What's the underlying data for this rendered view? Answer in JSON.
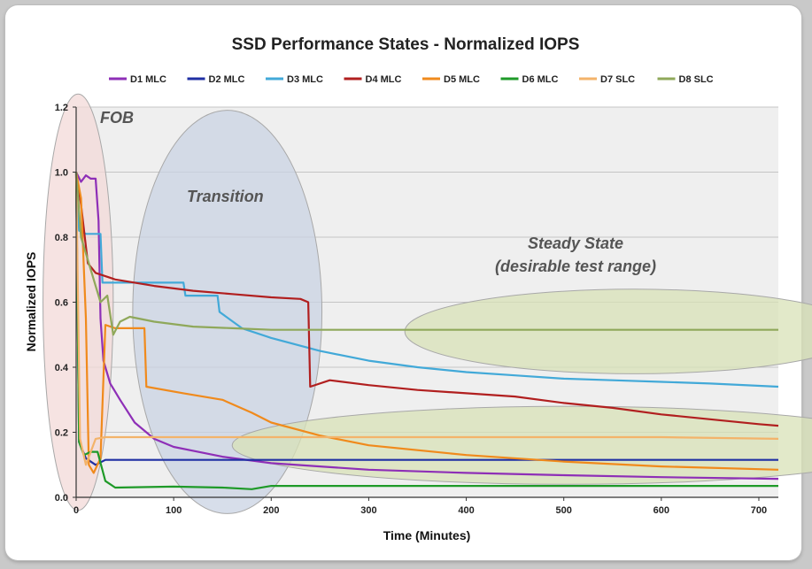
{
  "colors": {
    "frame_bg": "#ffffff",
    "plot_bg": "#efefef",
    "fob_fill": "#f3d9d8",
    "transition_fill": "#c9d3e3",
    "steady_fill": "#d8e2b7"
  },
  "chart_data": {
    "type": "line",
    "title": "SSD Performance States - Normalized IOPS",
    "xlabel": "Time (Minutes)",
    "ylabel": "Normalized IOPS",
    "xlim": [
      0,
      720
    ],
    "ylim": [
      0,
      1.2
    ],
    "xticks": [
      0,
      100,
      200,
      300,
      400,
      500,
      600,
      700
    ],
    "yticks": [
      0.0,
      0.2,
      0.4,
      0.6,
      0.8,
      1.0,
      1.2
    ],
    "grid": true,
    "legend_position": "top",
    "annotations": [
      {
        "text": "FOB",
        "region": "fob"
      },
      {
        "text": "Transition",
        "region": "transition"
      },
      {
        "text": "Steady State",
        "region": "steady"
      },
      {
        "text": "(desirable test range)",
        "region": "steady"
      }
    ],
    "series": [
      {
        "name": "D1 MLC",
        "color": "#8e2fb7",
        "points": [
          [
            0,
            1.0
          ],
          [
            5,
            0.97
          ],
          [
            10,
            0.99
          ],
          [
            15,
            0.98
          ],
          [
            20,
            0.98
          ],
          [
            23,
            0.85
          ],
          [
            25,
            0.55
          ],
          [
            28,
            0.42
          ],
          [
            35,
            0.35
          ],
          [
            45,
            0.3
          ],
          [
            60,
            0.23
          ],
          [
            80,
            0.18
          ],
          [
            100,
            0.155
          ],
          [
            150,
            0.125
          ],
          [
            200,
            0.105
          ],
          [
            250,
            0.095
          ],
          [
            300,
            0.085
          ],
          [
            400,
            0.075
          ],
          [
            500,
            0.068
          ],
          [
            600,
            0.062
          ],
          [
            720,
            0.057
          ]
        ]
      },
      {
        "name": "D2 MLC",
        "color": "#1f2fa3",
        "points": [
          [
            0,
            1.0
          ],
          [
            3,
            0.17
          ],
          [
            10,
            0.12
          ],
          [
            20,
            0.1
          ],
          [
            30,
            0.115
          ],
          [
            100,
            0.115
          ],
          [
            200,
            0.115
          ],
          [
            300,
            0.115
          ],
          [
            400,
            0.115
          ],
          [
            500,
            0.115
          ],
          [
            600,
            0.115
          ],
          [
            720,
            0.115
          ]
        ]
      },
      {
        "name": "D3 MLC",
        "color": "#42a9d8",
        "points": [
          [
            0,
            1.0
          ],
          [
            3,
            0.82
          ],
          [
            10,
            0.81
          ],
          [
            25,
            0.81
          ],
          [
            27,
            0.66
          ],
          [
            60,
            0.66
          ],
          [
            110,
            0.66
          ],
          [
            112,
            0.62
          ],
          [
            145,
            0.62
          ],
          [
            147,
            0.57
          ],
          [
            170,
            0.52
          ],
          [
            200,
            0.49
          ],
          [
            250,
            0.45
          ],
          [
            300,
            0.42
          ],
          [
            350,
            0.4
          ],
          [
            400,
            0.385
          ],
          [
            450,
            0.375
          ],
          [
            500,
            0.365
          ],
          [
            550,
            0.36
          ],
          [
            600,
            0.355
          ],
          [
            650,
            0.35
          ],
          [
            720,
            0.34
          ]
        ]
      },
      {
        "name": "D4 MLC",
        "color": "#b11f1f",
        "points": [
          [
            0,
            1.0
          ],
          [
            5,
            0.9
          ],
          [
            12,
            0.72
          ],
          [
            20,
            0.69
          ],
          [
            40,
            0.67
          ],
          [
            80,
            0.65
          ],
          [
            120,
            0.635
          ],
          [
            160,
            0.625
          ],
          [
            200,
            0.615
          ],
          [
            230,
            0.61
          ],
          [
            238,
            0.6
          ],
          [
            240,
            0.34
          ],
          [
            260,
            0.36
          ],
          [
            300,
            0.345
          ],
          [
            350,
            0.33
          ],
          [
            400,
            0.32
          ],
          [
            450,
            0.31
          ],
          [
            500,
            0.29
          ],
          [
            550,
            0.275
          ],
          [
            600,
            0.255
          ],
          [
            650,
            0.24
          ],
          [
            700,
            0.225
          ],
          [
            720,
            0.22
          ]
        ]
      },
      {
        "name": "D5 MLC",
        "color": "#f08a1c",
        "points": [
          [
            0,
            1.0
          ],
          [
            5,
            0.92
          ],
          [
            10,
            0.55
          ],
          [
            13,
            0.1
          ],
          [
            18,
            0.075
          ],
          [
            25,
            0.12
          ],
          [
            30,
            0.53
          ],
          [
            40,
            0.52
          ],
          [
            70,
            0.52
          ],
          [
            72,
            0.34
          ],
          [
            110,
            0.32
          ],
          [
            150,
            0.3
          ],
          [
            180,
            0.26
          ],
          [
            200,
            0.23
          ],
          [
            250,
            0.19
          ],
          [
            300,
            0.16
          ],
          [
            400,
            0.13
          ],
          [
            500,
            0.11
          ],
          [
            600,
            0.095
          ],
          [
            720,
            0.085
          ]
        ]
      },
      {
        "name": "D6 MLC",
        "color": "#1e9a28",
        "points": [
          [
            0,
            1.0
          ],
          [
            3,
            0.17
          ],
          [
            8,
            0.13
          ],
          [
            15,
            0.14
          ],
          [
            22,
            0.14
          ],
          [
            30,
            0.05
          ],
          [
            40,
            0.03
          ],
          [
            100,
            0.033
          ],
          [
            150,
            0.03
          ],
          [
            180,
            0.025
          ],
          [
            200,
            0.035
          ],
          [
            300,
            0.035
          ],
          [
            400,
            0.035
          ],
          [
            500,
            0.035
          ],
          [
            600,
            0.035
          ],
          [
            720,
            0.035
          ]
        ]
      },
      {
        "name": "D7 SLC",
        "color": "#f3b36a",
        "points": [
          [
            0,
            1.0
          ],
          [
            4,
            0.18
          ],
          [
            10,
            0.1
          ],
          [
            20,
            0.18
          ],
          [
            30,
            0.185
          ],
          [
            100,
            0.185
          ],
          [
            200,
            0.185
          ],
          [
            300,
            0.185
          ],
          [
            400,
            0.185
          ],
          [
            500,
            0.185
          ],
          [
            600,
            0.185
          ],
          [
            720,
            0.18
          ]
        ]
      },
      {
        "name": "D8 SLC",
        "color": "#8fa85a",
        "points": [
          [
            0,
            1.0
          ],
          [
            5,
            0.8
          ],
          [
            15,
            0.7
          ],
          [
            25,
            0.6
          ],
          [
            32,
            0.62
          ],
          [
            38,
            0.5
          ],
          [
            45,
            0.54
          ],
          [
            55,
            0.555
          ],
          [
            80,
            0.54
          ],
          [
            120,
            0.525
          ],
          [
            160,
            0.52
          ],
          [
            200,
            0.515
          ],
          [
            300,
            0.515
          ],
          [
            400,
            0.515
          ],
          [
            500,
            0.515
          ],
          [
            600,
            0.515
          ],
          [
            720,
            0.515
          ]
        ]
      }
    ]
  }
}
